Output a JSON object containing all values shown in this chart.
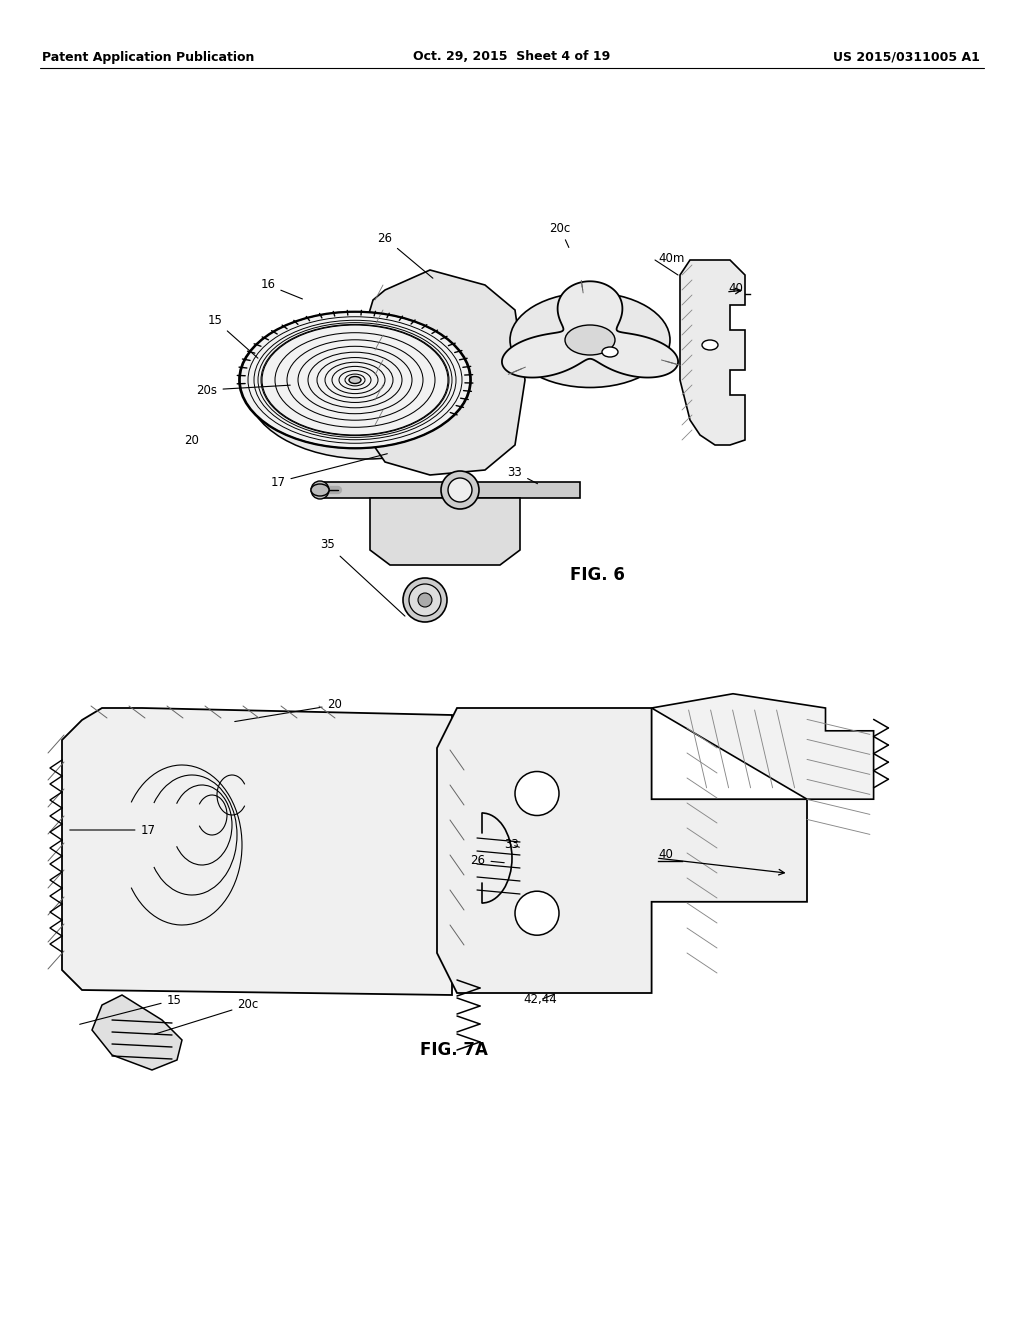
{
  "background_color": "#ffffff",
  "header_left": "Patent Application Publication",
  "header_center": "Oct. 29, 2015  Sheet 4 of 19",
  "header_right": "US 2015/0311005 A1",
  "fig6_label": "FIG. 6",
  "fig7a_label": "FIG. 7A",
  "header_fontsize": 9,
  "annotation_fontsize": 8.5,
  "fig_label_fontsize": 12
}
